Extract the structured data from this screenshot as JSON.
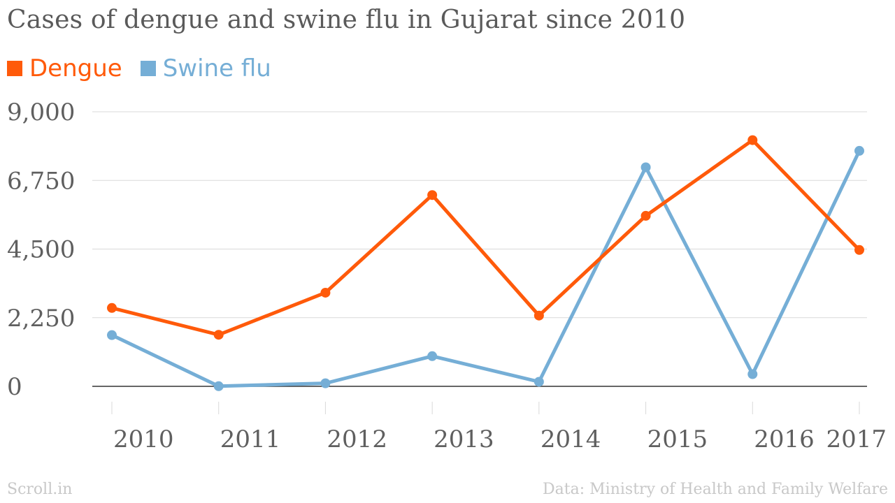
{
  "title": "Cases of dengue and swine flu in Gujarat since 2010",
  "footer": {
    "brand": "Scroll.in",
    "source": "Data: Ministry of Health and Family Welfare"
  },
  "colors": {
    "dengue": "#ff5a0a",
    "swine_flu": "#75aed6",
    "grid": "#d9d9d9",
    "axis": "#333333"
  },
  "chart_data": {
    "type": "line",
    "title": "Cases of dengue and swine flu in Gujarat since 2010",
    "xlabel": "",
    "ylabel": "",
    "x": [
      "2010",
      "2011",
      "2012",
      "2013",
      "2014",
      "2015",
      "2016",
      "2017"
    ],
    "yticks": [
      0,
      2250,
      4500,
      6750,
      9000
    ],
    "ytick_labels": [
      "0",
      "2,250",
      "4,500",
      "6,750",
      "9,000"
    ],
    "ylim": [
      0,
      9000
    ],
    "grid": true,
    "legend_position": "top-left",
    "series": [
      {
        "name": "Dengue",
        "color": "#ff5a0a",
        "values": [
          2570,
          1690,
          3070,
          6270,
          2320,
          5590,
          8070,
          4470
        ]
      },
      {
        "name": "Swine flu",
        "color": "#75aed6",
        "values": [
          1680,
          5,
          100,
          990,
          150,
          7180,
          400,
          7720
        ]
      }
    ]
  }
}
